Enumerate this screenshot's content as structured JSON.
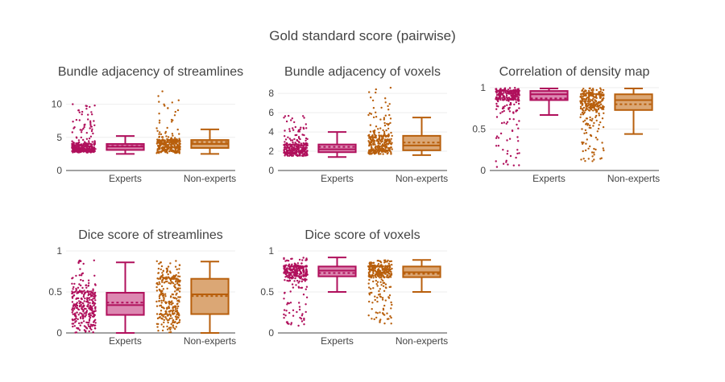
{
  "chart_data": {
    "type": "box",
    "title": "Gold standard score (pairwise)",
    "colors": {
      "Experts": "#b0105c",
      "Non-experts": "#b85f0c",
      "Experts_fill": "#dc88b1",
      "Non-experts_fill": "#dba775"
    },
    "groups": [
      "Experts",
      "Non-experts"
    ],
    "panels": [
      {
        "title": "Bundle adjacency of streamlines",
        "ylim": [
          0,
          12.5
        ],
        "yticks": [
          0,
          5,
          10
        ],
        "ytick_labels": [
          "0",
          "5",
          "10"
        ],
        "boxes": [
          {
            "group": "Experts",
            "min": 2.5,
            "q1": 3.1,
            "median": 3.6,
            "mean": 3.7,
            "q3": 4.0,
            "max": 5.2,
            "points_range": [
              2.7,
              10.4
            ],
            "points_n": 300
          },
          {
            "group": "Non-experts",
            "min": 2.5,
            "q1": 3.4,
            "median": 4.0,
            "mean": 4.3,
            "q3": 4.6,
            "max": 6.2,
            "points_range": [
              2.6,
              12.3
            ],
            "points_n": 300
          }
        ]
      },
      {
        "title": "Bundle adjacency of voxels",
        "ylim": [
          0,
          8.6
        ],
        "yticks": [
          0,
          2,
          4,
          6,
          8
        ],
        "ytick_labels": [
          "0",
          "2",
          "4",
          "6",
          "8"
        ],
        "boxes": [
          {
            "group": "Experts",
            "min": 1.4,
            "q1": 1.9,
            "median": 2.2,
            "mean": 2.45,
            "q3": 2.7,
            "max": 4.0,
            "points_range": [
              1.5,
              5.7
            ],
            "points_n": 300
          },
          {
            "group": "Non-experts",
            "min": 1.6,
            "q1": 2.1,
            "median": 2.6,
            "mean": 2.9,
            "q3": 3.6,
            "max": 5.5,
            "points_range": [
              1.7,
              8.6
            ],
            "points_n": 300
          }
        ]
      },
      {
        "title": "Correlation of density map",
        "ylim": [
          0,
          1.0
        ],
        "yticks": [
          0,
          0.5,
          1
        ],
        "ytick_labels": [
          "0",
          "0.5",
          "1"
        ],
        "boxes": [
          {
            "group": "Experts",
            "min": 0.67,
            "q1": 0.85,
            "median": 0.92,
            "mean": 0.87,
            "q3": 0.96,
            "max": 0.99,
            "points_range": [
              0.03,
              1.0
            ],
            "points_n": 300
          },
          {
            "group": "Non-experts",
            "min": 0.44,
            "q1": 0.73,
            "median": 0.85,
            "mean": 0.8,
            "q3": 0.92,
            "max": 0.99,
            "points_range": [
              0.08,
              1.0
            ],
            "points_n": 300
          }
        ]
      },
      {
        "title": "Dice score of streamlines",
        "ylim": [
          0,
          1.0
        ],
        "yticks": [
          0,
          0.5,
          1
        ],
        "ytick_labels": [
          "0",
          "0.5",
          "1"
        ],
        "boxes": [
          {
            "group": "Experts",
            "min": 0.0,
            "q1": 0.22,
            "median": 0.34,
            "mean": 0.37,
            "q3": 0.49,
            "max": 0.86,
            "points_range": [
              0.0,
              0.9
            ],
            "points_n": 300
          },
          {
            "group": "Non-experts",
            "min": 0.0,
            "q1": 0.23,
            "median": 0.47,
            "mean": 0.45,
            "q3": 0.66,
            "max": 0.87,
            "points_range": [
              0.0,
              0.88
            ],
            "points_n": 300
          }
        ]
      },
      {
        "title": "Dice score of voxels",
        "ylim": [
          0,
          1.0
        ],
        "yticks": [
          0,
          0.5,
          1
        ],
        "ytick_labels": [
          "0",
          "0.5",
          "1"
        ],
        "boxes": [
          {
            "group": "Experts",
            "min": 0.5,
            "q1": 0.69,
            "median": 0.76,
            "mean": 0.73,
            "q3": 0.81,
            "max": 0.92,
            "points_range": [
              0.08,
              0.92
            ],
            "points_n": 300
          },
          {
            "group": "Non-experts",
            "min": 0.5,
            "q1": 0.68,
            "median": 0.74,
            "mean": 0.72,
            "q3": 0.81,
            "max": 0.89,
            "points_range": [
              0.11,
              0.9
            ],
            "points_n": 300
          }
        ]
      }
    ]
  }
}
